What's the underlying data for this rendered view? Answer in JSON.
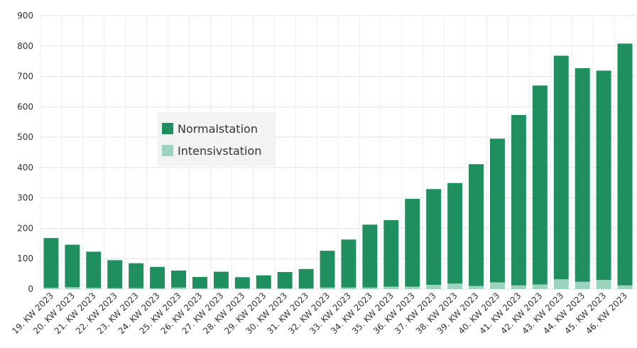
{
  "chart_data": {
    "type": "bar",
    "stacked": true,
    "categories": [
      "19. KW 2023",
      "20. KW 2023",
      "21. KW 2023",
      "22. KW 2023",
      "23. KW 2023",
      "24. KW 2023",
      "25. KW 2023",
      "26. KW 2023",
      "27. KW 2023",
      "28. KW 2023",
      "29. KW 2023",
      "30. KW 2023",
      "31. KW 2023",
      "32. KW 2023",
      "33. KW 2023",
      "34. KW 2023",
      "35. KW 2023",
      "36. KW 2023",
      "37. KW 2023",
      "38. KW 2023",
      "39. KW 2023",
      "40. KW 2023",
      "41. KW 2023",
      "42. KW 2023",
      "43. KW 2023",
      "44. KW 2023",
      "45. KW 2023",
      "46. KW 2023"
    ],
    "series": [
      {
        "name": "Intensivstation",
        "color": "#9dd4c0",
        "values": [
          4,
          6,
          4,
          3,
          3,
          2,
          5,
          2,
          3,
          2,
          2,
          2,
          2,
          5,
          5,
          5,
          8,
          8,
          14,
          18,
          10,
          22,
          12,
          15,
          32,
          24,
          30,
          12
        ]
      },
      {
        "name": "Normalstation",
        "color": "#1f8f5f",
        "values": [
          164,
          140,
          119,
          92,
          82,
          71,
          56,
          38,
          54,
          37,
          43,
          54,
          64,
          121,
          158,
          207,
          219,
          289,
          315,
          331,
          401,
          473,
          561,
          655,
          736,
          703,
          689,
          796
        ]
      }
    ],
    "ylim": [
      0,
      900
    ],
    "yticks": [
      0,
      100,
      200,
      300,
      400,
      500,
      600,
      700,
      800,
      900
    ],
    "grid": true,
    "legend_position": "center-left",
    "title": "",
    "xlabel": "",
    "ylabel": ""
  }
}
